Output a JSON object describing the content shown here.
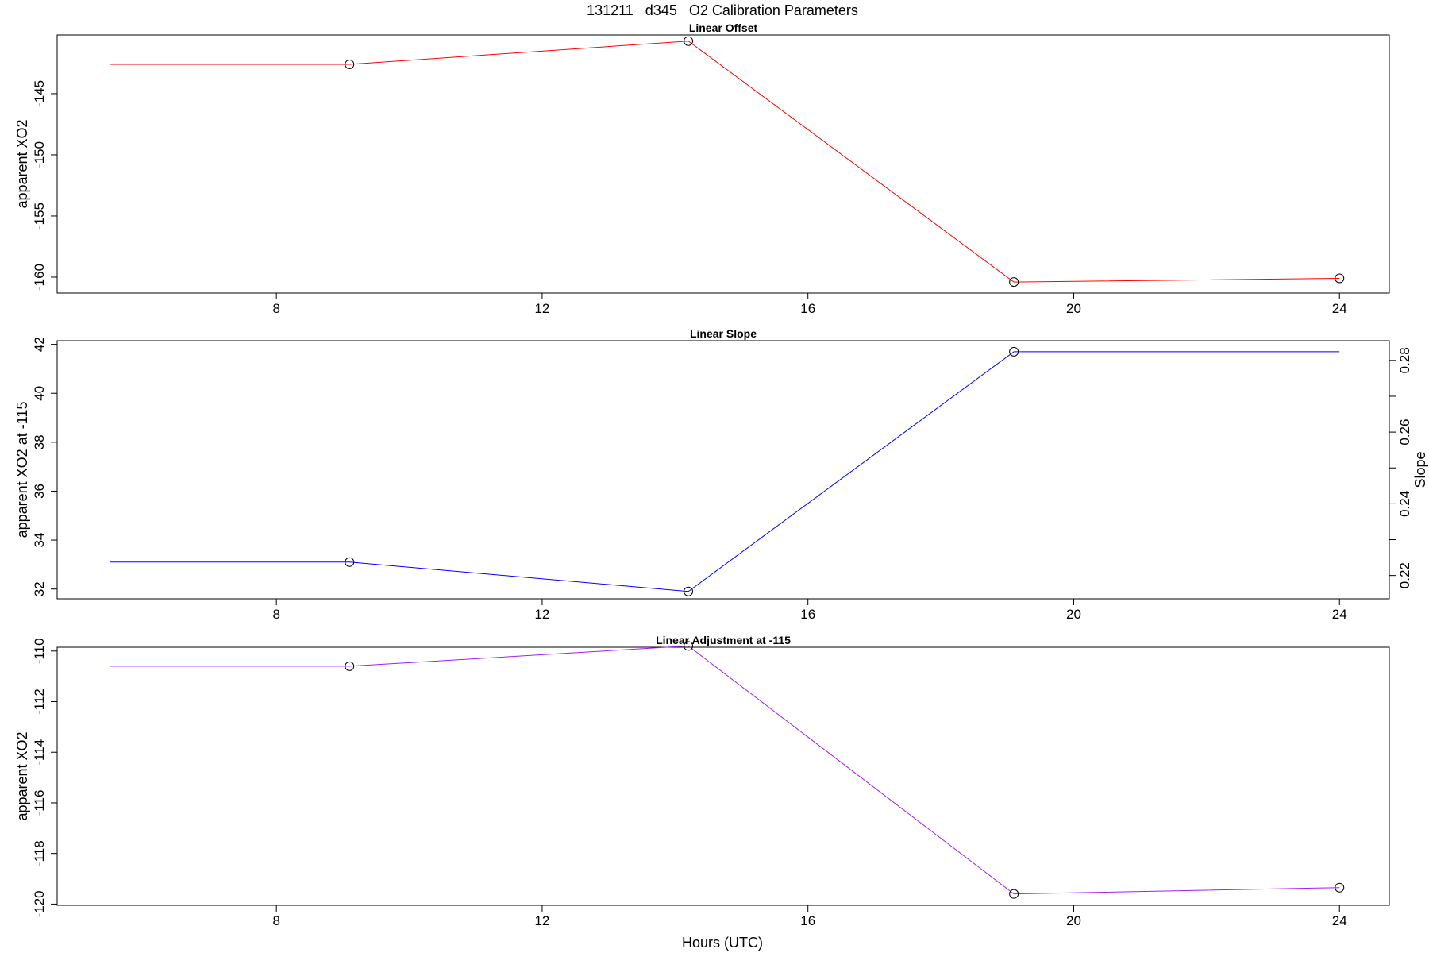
{
  "main_title": "131211   d345   O2 Calibration Parameters",
  "xlabel": "Hours (UTC)",
  "chart_data": [
    {
      "type": "line",
      "title": "Linear Offset",
      "ylabel": "apparent XO2",
      "color": "#ff0000",
      "xlim": [
        4.7,
        24.75
      ],
      "ylim": [
        -161.3,
        -140.2
      ],
      "x": [
        5.5,
        9.1,
        14.2,
        19.1,
        24.0
      ],
      "y": [
        -142.6,
        -142.6,
        -140.7,
        -160.4,
        -160.1
      ],
      "markers_from_index": 1,
      "xticks": [
        8,
        12,
        16,
        20,
        24
      ],
      "yticks": [
        -145,
        -150,
        -155,
        -160
      ]
    },
    {
      "type": "line",
      "title": "Linear Slope",
      "ylabel": "apparent XO2 at -115",
      "y2label": "Slope",
      "color": "#0000ff",
      "xlim": [
        4.7,
        24.75
      ],
      "ylim": [
        31.6,
        42.15
      ],
      "y2lim": [
        0.2135,
        0.2855
      ],
      "x": [
        5.5,
        9.1,
        14.2,
        19.1,
        24.0
      ],
      "y": [
        33.1,
        33.1,
        31.9,
        41.7,
        41.7
      ],
      "markers_to_index": 3,
      "markers_from_index": 1,
      "xticks": [
        8,
        12,
        16,
        20,
        24
      ],
      "yticks": [
        32,
        34,
        36,
        38,
        40,
        42
      ],
      "y2ticks": [
        0.22,
        0.24,
        0.26,
        0.28
      ]
    },
    {
      "type": "line",
      "title": "Linear Adjustment at -115",
      "ylabel": "apparent XO2",
      "color": "#a020f0",
      "xlim": [
        4.7,
        24.75
      ],
      "ylim": [
        -120.05,
        -109.85
      ],
      "x": [
        5.5,
        9.1,
        14.2,
        19.1,
        24.0
      ],
      "y": [
        -110.6,
        -110.6,
        -109.8,
        -119.6,
        -119.35
      ],
      "markers_from_index": 1,
      "xticks": [
        8,
        12,
        16,
        20,
        24
      ],
      "yticks": [
        -110,
        -112,
        -114,
        -116,
        -118,
        -120
      ]
    }
  ]
}
